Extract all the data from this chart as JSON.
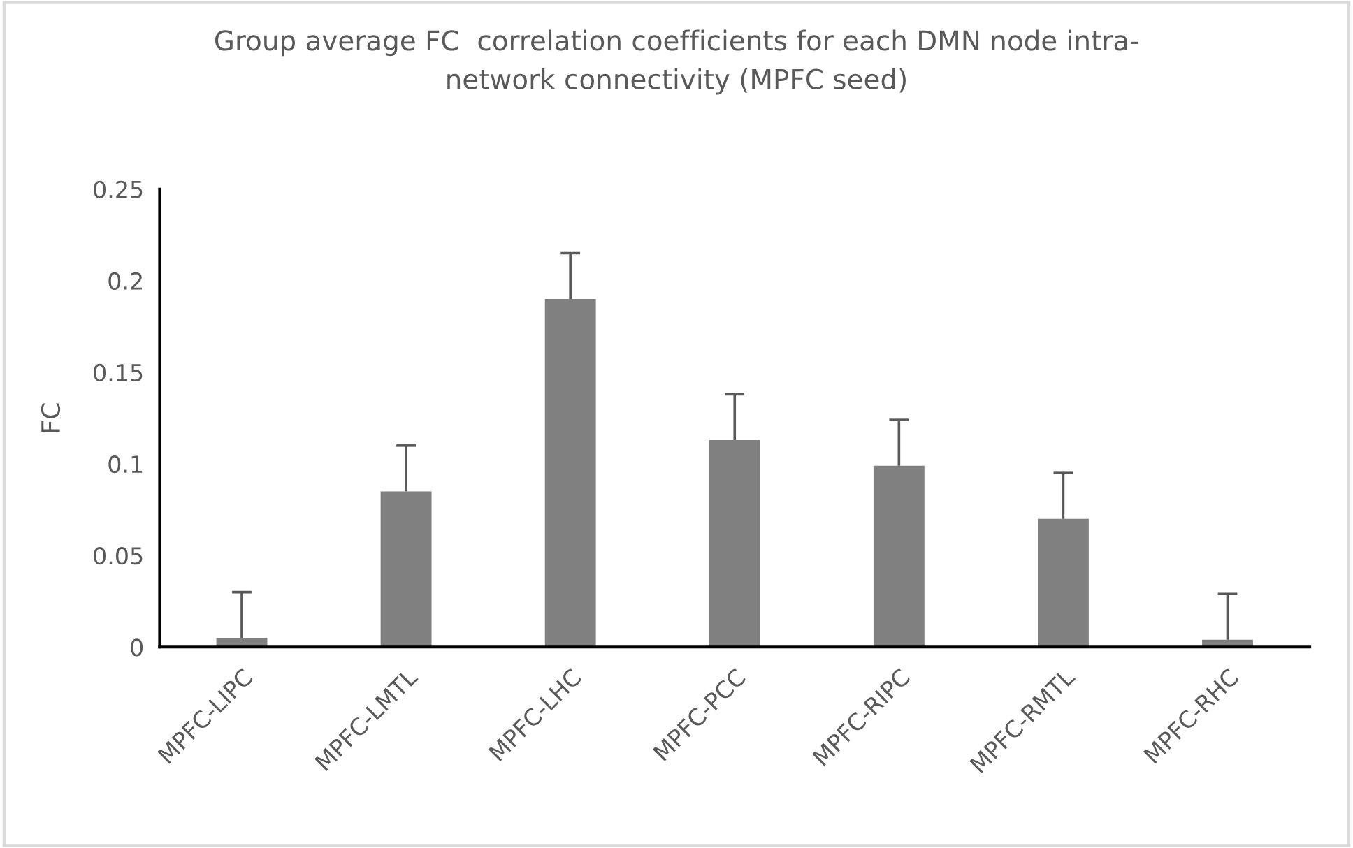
{
  "chart_data": {
    "type": "bar",
    "title": "Group average FC  correlation coefficients for each DMN node intra-\nnetwork connectivity (MPFC seed)",
    "ylabel": "FC",
    "categories": [
      "MPFC-LIPC",
      "MPFC-LMTL",
      "MPFC-LHC",
      "MPFC-PCC",
      "MPFC-RIPC",
      "MPFC-RMTL",
      "MPFC-RHC"
    ],
    "values": [
      0.005,
      0.085,
      0.19,
      0.113,
      0.099,
      0.07,
      0.004
    ],
    "errors": [
      [
        0.005,
        0.03
      ],
      [
        0.085,
        0.11
      ],
      [
        0.19,
        0.215
      ],
      [
        0.113,
        0.138
      ],
      [
        0.099,
        0.124
      ],
      [
        0.07,
        0.095
      ],
      [
        0.004,
        0.029
      ]
    ],
    "color": "#808080",
    "ylim": [
      0,
      0.25
    ],
    "yticks": [
      0,
      0.05,
      0.1,
      0.15,
      0.2,
      0.25
    ],
    "grid": false,
    "legend": false
  }
}
